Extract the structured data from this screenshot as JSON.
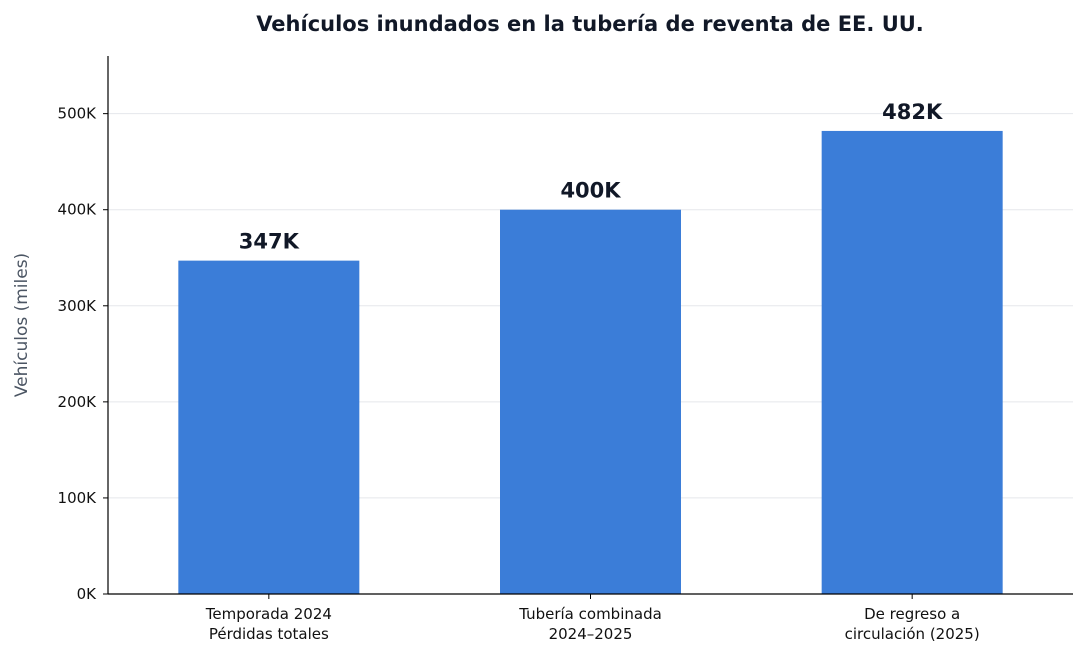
{
  "chart_data": {
    "type": "bar",
    "title": "Vehículos inundados en la tubería de reventa de EE. UU.",
    "xlabel": "",
    "ylabel": "Vehículos (miles)",
    "categories": [
      [
        "Temporada 2024",
        "Pérdidas totales"
      ],
      [
        "Tubería combinada",
        "2024–2025"
      ],
      [
        "De regreso a",
        "circulación (2025)"
      ]
    ],
    "values": [
      347,
      400,
      482
    ],
    "data_labels": [
      "347K",
      "400K",
      "482K"
    ],
    "ylim": [
      0,
      560
    ],
    "yticks": [
      0,
      100,
      200,
      300,
      400,
      500
    ],
    "ytick_labels": [
      "0K",
      "100K",
      "200K",
      "300K",
      "400K",
      "500K"
    ],
    "grid": "horizontal",
    "colors": {
      "bar": "#3b7dd8",
      "title": "#111827",
      "ylabel": "#4b5563",
      "grid": "#e5e7eb"
    }
  }
}
